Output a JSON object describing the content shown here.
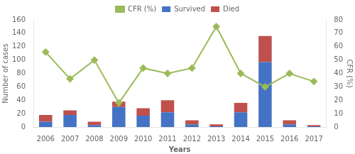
{
  "chart_data": {
    "type": "bar",
    "categories": [
      "2006",
      "2007",
      "2008",
      "2009",
      "2010",
      "2011",
      "2012",
      "2013",
      "2014",
      "2015",
      "2016",
      "2017"
    ],
    "series": [
      {
        "name": "Survived",
        "color": "#4472C4",
        "values": [
          8,
          18,
          3,
          30,
          17,
          22,
          4,
          1,
          22,
          97,
          4,
          1
        ]
      },
      {
        "name": "Died",
        "color": "#C0504D",
        "values": [
          10,
          7,
          5,
          8,
          11,
          18,
          6,
          3,
          14,
          39,
          6,
          2
        ]
      },
      {
        "name": "CFR (%)",
        "type": "line",
        "axis": "y2",
        "color": "#9BBB59",
        "marker": "diamond",
        "values": [
          56,
          36,
          50,
          18,
          44,
          40,
          44,
          75,
          40,
          30,
          40,
          34
        ]
      }
    ],
    "stacked": true,
    "xlabel": "Years",
    "ylabel": "Number of cases",
    "y2label": "CFR (%)",
    "ylim": [
      0,
      160
    ],
    "yticks": [
      0,
      20,
      40,
      60,
      80,
      100,
      120,
      140,
      160
    ],
    "y2lim": [
      0,
      80
    ],
    "y2ticks": [
      0,
      10,
      20,
      30,
      40,
      50,
      60,
      70,
      80
    ],
    "grid": false,
    "legend": "top"
  }
}
